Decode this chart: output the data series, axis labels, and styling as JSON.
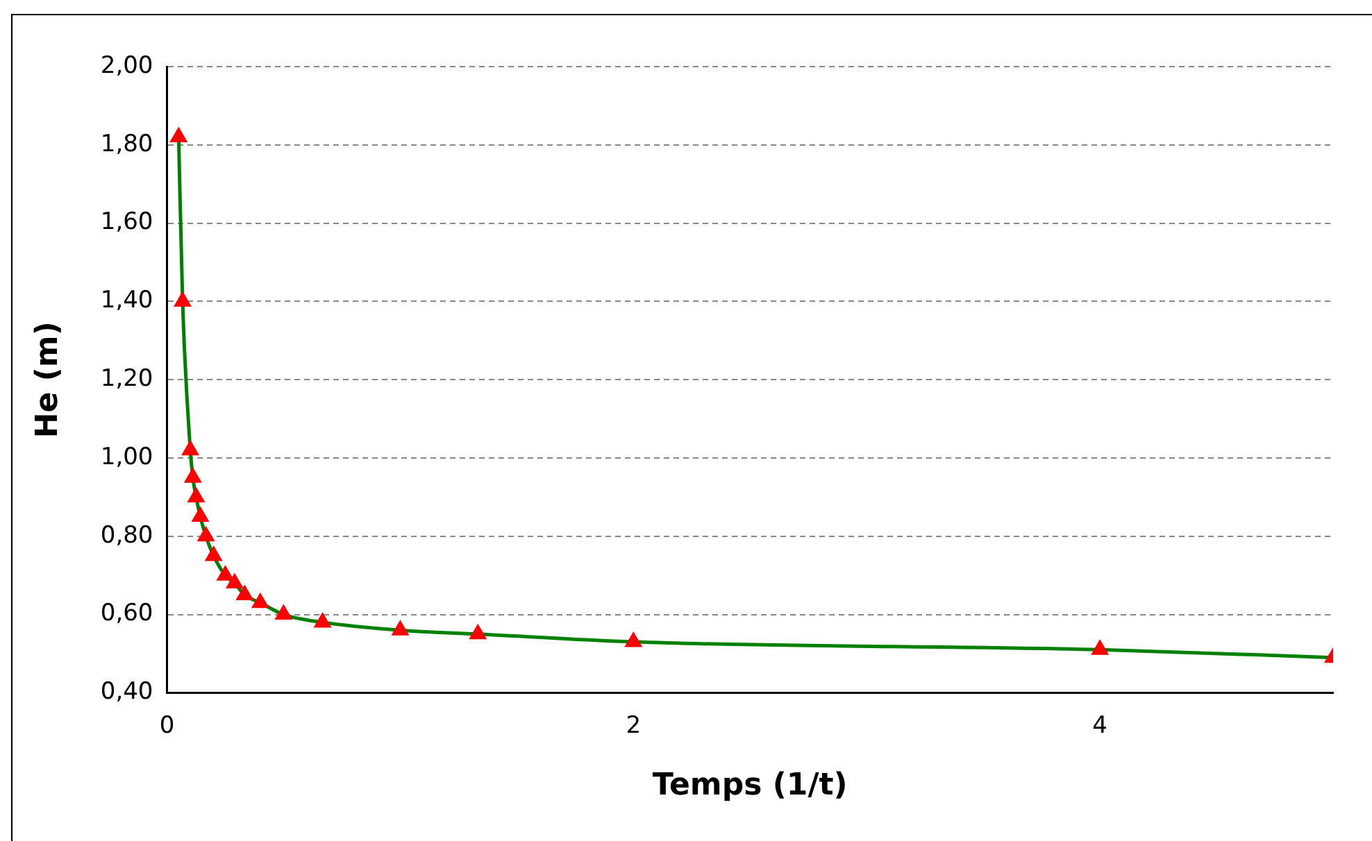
{
  "chart_data": {
    "type": "line",
    "xlabel": "Temps (1/t)",
    "ylabel": "He (m)",
    "x": [
      0.05,
      0.067,
      0.1,
      0.111,
      0.125,
      0.143,
      0.167,
      0.2,
      0.25,
      0.29,
      0.333,
      0.4,
      0.5,
      0.667,
      1,
      1.333,
      2,
      4,
      5
    ],
    "series": [
      {
        "color": "#008000",
        "colors": [
          "#ff0000",
          "#ff0000",
          "#ff0000",
          "#ff0000",
          "#ff0000",
          "#ff0000",
          "#ff0000",
          "#ff0000",
          "#ff0000",
          "#ff0000",
          "#ff0000",
          "#ff0000",
          "#ff0000",
          "#ff0000",
          "#ff0000",
          "#ff0000",
          "#ff0000",
          "#ff0000",
          "#ff0000"
        ],
        "values": [
          1.82,
          1.4,
          1.02,
          0.95,
          0.9,
          0.85,
          0.8,
          0.75,
          0.7,
          0.68,
          0.65,
          0.63,
          0.6,
          0.58,
          0.56,
          0.55,
          0.53,
          0.51,
          0.49
        ]
      }
    ],
    "xlim": [
      0,
      5
    ],
    "xticks": [
      0,
      2,
      4
    ],
    "ylim": [
      0.4,
      2.0
    ],
    "yticks": [
      {
        "value": 0.4,
        "label": "0,40"
      },
      {
        "value": 0.6,
        "label": "0,60"
      },
      {
        "value": 0.8,
        "label": "0,80"
      },
      {
        "value": 1.0,
        "label": "1,00"
      },
      {
        "value": 1.2,
        "label": "1,20"
      },
      {
        "value": 1.4,
        "label": "1,40"
      },
      {
        "value": 1.6,
        "label": "1,60"
      },
      {
        "value": 1.8,
        "label": "1,80"
      },
      {
        "value": 2.0,
        "label": "2,00"
      }
    ],
    "grid": "y",
    "legend": false,
    "marker": "triangle",
    "line_style": "solid"
  }
}
